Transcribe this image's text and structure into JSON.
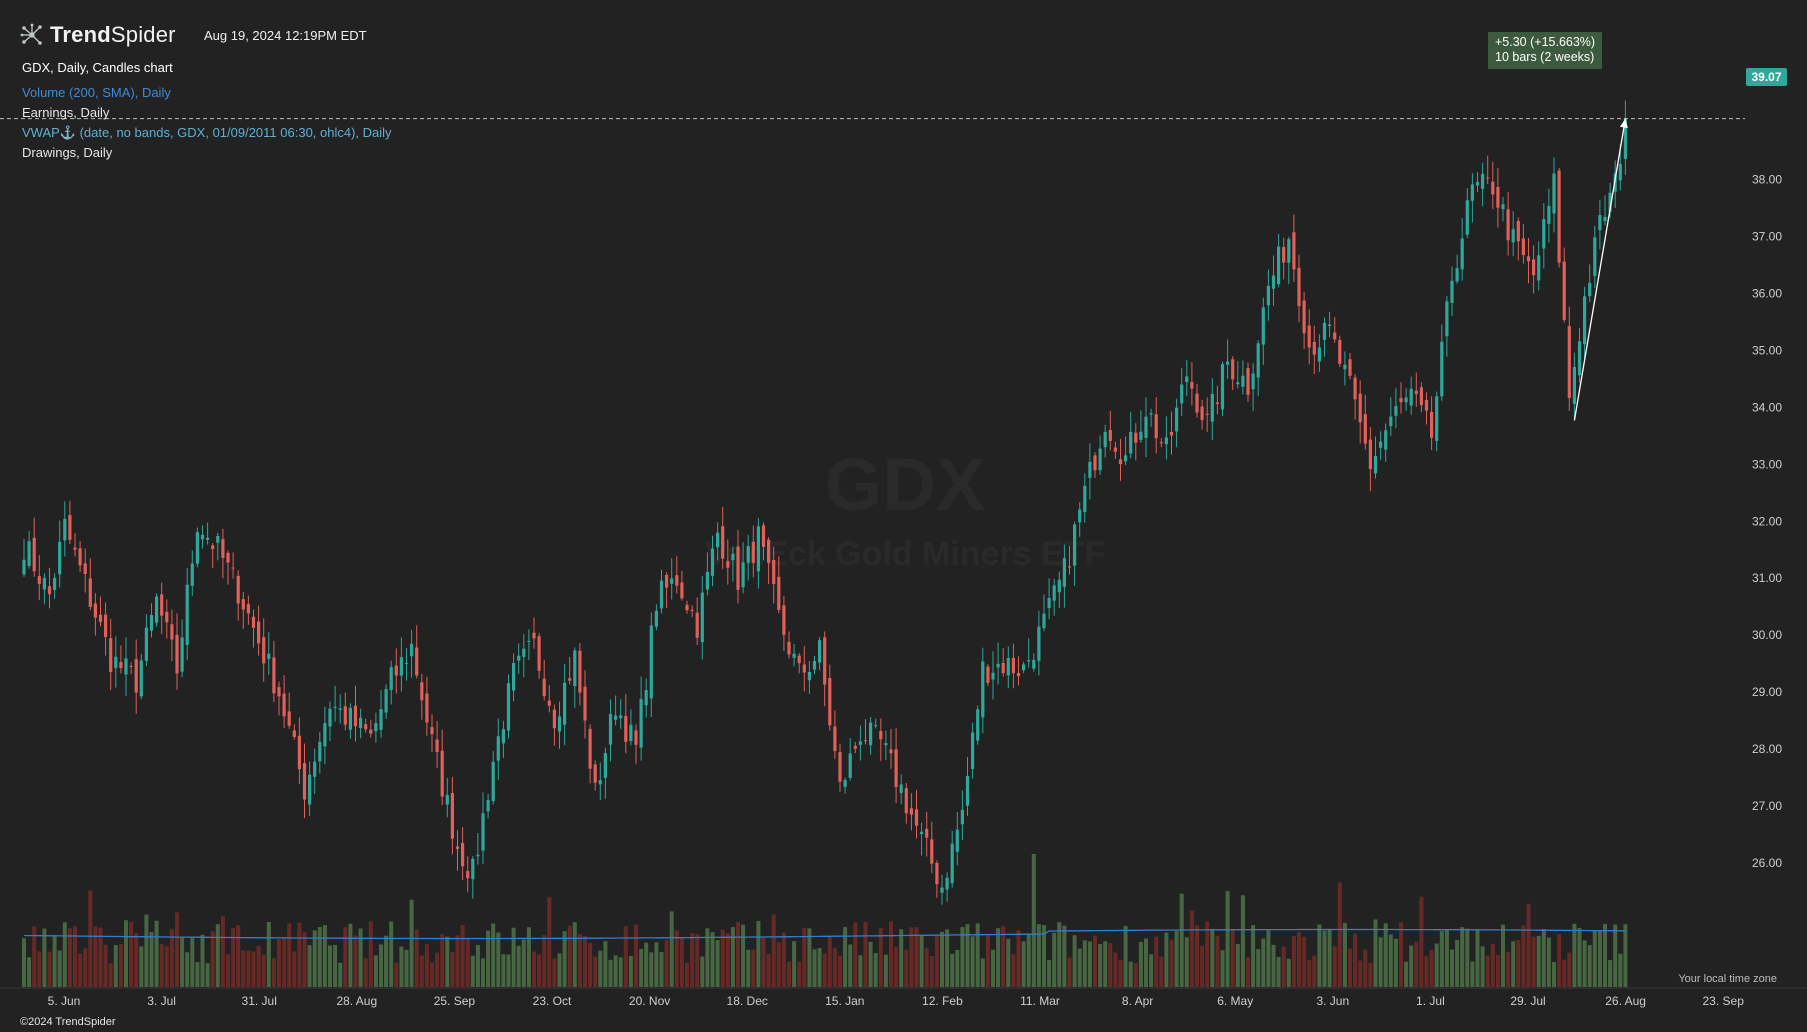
{
  "header": {
    "brand_a": "Trend",
    "brand_b": "Spider",
    "timestamp": "Aug 19, 2024 12:19PM EDT"
  },
  "legend": {
    "chart": "GDX, Daily, Candles chart",
    "volume": "Volume (200, SMA), Daily",
    "earnings": "Earnings, Daily",
    "vwap": "VWAP⚓ (date, no bands, GDX, 01/09/2011 06:30, ohlc4), Daily",
    "drawings": "Drawings, Daily"
  },
  "measure": {
    "line1": "+5.30 (+15.663%)",
    "line2": "10 bars (2 weeks)"
  },
  "last_price_label": "39.07",
  "watermark": {
    "symbol": "GDX",
    "name": "VanEck Gold Miners ETF"
  },
  "footer": {
    "timezone_note": "Your local time zone",
    "copyright": "©2024 TrendSpider"
  },
  "colors": {
    "background": "#222222",
    "up": "#2fa79a",
    "down": "#e0605a",
    "volume_up": "#4a6a45",
    "volume_down": "#6b2a26",
    "volume_sma": "#2f7fd0",
    "price_badge": "#2fa79a",
    "measure_box": "#3c5a3e"
  },
  "chart_data": {
    "type": "candlestick",
    "symbol": "GDX",
    "interval": "Daily",
    "ylim": [
      25.0,
      39.8
    ],
    "y_ticks": [
      "38.00",
      "37.00",
      "36.00",
      "35.00",
      "34.00",
      "33.00",
      "32.00",
      "31.00",
      "30.00",
      "29.00",
      "28.00",
      "27.00",
      "26.00"
    ],
    "x_ticks": [
      "5. Jun",
      "3. Jul",
      "31. Jul",
      "28. Aug",
      "25. Sep",
      "23. Oct",
      "20. Nov",
      "18. Dec",
      "15. Jan",
      "12. Feb",
      "11. Mar",
      "8. Apr",
      "6. May",
      "3. Jun",
      "1. Jul",
      "29. Jul",
      "26. Aug",
      "23. Sep"
    ],
    "close_anchors": [
      [
        0,
        31.6
      ],
      [
        5,
        30.7
      ],
      [
        8,
        31.9
      ],
      [
        12,
        30.9
      ],
      [
        17,
        29.6
      ],
      [
        22,
        29.2
      ],
      [
        26,
        30.6
      ],
      [
        30,
        29.4
      ],
      [
        34,
        32.0
      ],
      [
        38,
        31.5
      ],
      [
        42,
        30.8
      ],
      [
        46,
        29.9
      ],
      [
        50,
        29.0
      ],
      [
        55,
        27.3
      ],
      [
        60,
        28.8
      ],
      [
        64,
        28.5
      ],
      [
        68,
        28.2
      ],
      [
        72,
        29.2
      ],
      [
        76,
        29.8
      ],
      [
        80,
        28.1
      ],
      [
        85,
        26.3
      ],
      [
        88,
        25.8
      ],
      [
        92,
        27.8
      ],
      [
        96,
        29.3
      ],
      [
        100,
        29.8
      ],
      [
        104,
        28.6
      ],
      [
        108,
        29.6
      ],
      [
        112,
        27.2
      ],
      [
        116,
        28.8
      ],
      [
        120,
        28.0
      ],
      [
        124,
        30.6
      ],
      [
        128,
        31.0
      ],
      [
        132,
        30.2
      ],
      [
        136,
        31.8
      ],
      [
        140,
        31.0
      ],
      [
        144,
        31.7
      ],
      [
        148,
        30.3
      ],
      [
        152,
        29.3
      ],
      [
        156,
        29.7
      ],
      [
        160,
        27.3
      ],
      [
        164,
        28.3
      ],
      [
        168,
        28.1
      ],
      [
        172,
        27.3
      ],
      [
        176,
        26.4
      ],
      [
        180,
        25.6
      ],
      [
        184,
        26.9
      ],
      [
        188,
        29.4
      ],
      [
        192,
        29.5
      ],
      [
        196,
        29.4
      ],
      [
        200,
        30.2
      ],
      [
        204,
        31.1
      ],
      [
        208,
        32.5
      ],
      [
        212,
        33.8
      ],
      [
        216,
        33.1
      ],
      [
        220,
        34.0
      ],
      [
        224,
        33.2
      ],
      [
        228,
        34.6
      ],
      [
        232,
        33.7
      ],
      [
        236,
        34.8
      ],
      [
        240,
        34.4
      ],
      [
        244,
        36.1
      ],
      [
        248,
        37.0
      ],
      [
        252,
        35.1
      ],
      [
        256,
        35.3
      ],
      [
        260,
        34.3
      ],
      [
        264,
        33.0
      ],
      [
        268,
        33.8
      ],
      [
        272,
        34.2
      ],
      [
        276,
        33.5
      ],
      [
        280,
        36.3
      ],
      [
        284,
        37.8
      ],
      [
        288,
        37.9
      ],
      [
        292,
        36.9
      ],
      [
        296,
        36.3
      ],
      [
        300,
        37.9
      ],
      [
        303,
        34.2
      ],
      [
        306,
        35.9
      ],
      [
        309,
        37.2
      ],
      [
        312,
        37.9
      ],
      [
        314,
        39.07
      ]
    ],
    "last_close": 39.07,
    "volume_scale": "relative",
    "volume_sma_period": 200,
    "measure": {
      "change": 5.3,
      "change_pct": 15.663,
      "bars": 10,
      "from_bar": 304,
      "to_bar": 314,
      "from_price": 33.77,
      "to_price": 39.07
    }
  }
}
